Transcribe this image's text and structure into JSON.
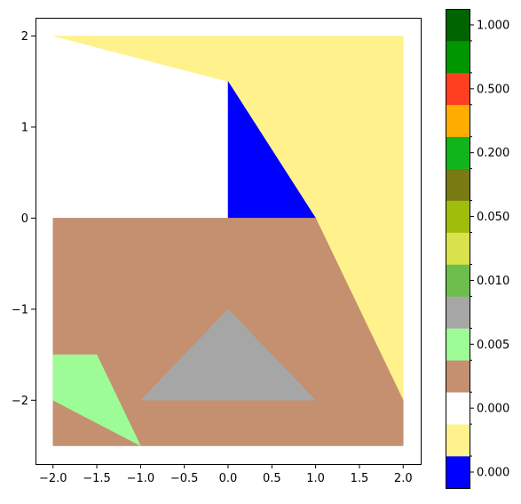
{
  "chart_data": {
    "type": "filled-region-plot",
    "title": "",
    "xlabel": "",
    "ylabel": "",
    "xlim": [
      -2.2,
      2.2
    ],
    "ylim": [
      -2.7,
      2.2
    ],
    "grid": false,
    "x_ticks": [
      -2.0,
      -1.5,
      -1.0,
      -0.5,
      0.0,
      0.5,
      1.0,
      1.5,
      2.0
    ],
    "x_tick_labels": [
      "−2.0",
      "−1.5",
      "−1.0",
      "−0.5",
      "0.0",
      "0.5",
      "1.0",
      "1.5",
      "2.0"
    ],
    "y_ticks": [
      2,
      1,
      0,
      -1,
      -2
    ],
    "y_tick_labels": [
      "2",
      "1",
      "0",
      "−1",
      "−2"
    ],
    "regions": [
      {
        "color": "#fff28c",
        "points": [
          [
            -2,
            2
          ],
          [
            2,
            2
          ],
          [
            2,
            -2
          ],
          [
            1,
            0
          ],
          [
            0,
            1.5
          ]
        ]
      },
      {
        "color": "#0000ff",
        "points": [
          [
            0,
            1.5
          ],
          [
            1,
            0
          ],
          [
            0,
            0
          ]
        ]
      },
      {
        "color": "#c49070",
        "points": [
          [
            -2,
            0
          ],
          [
            1,
            0
          ],
          [
            2,
            -2
          ],
          [
            2,
            -2.5
          ],
          [
            -2,
            -2.5
          ]
        ]
      },
      {
        "color": "#9dfc96",
        "points": [
          [
            -2,
            -1.5
          ],
          [
            -1.5,
            -1.5
          ],
          [
            -1,
            -2.5
          ],
          [
            -2,
            -2
          ]
        ]
      },
      {
        "color": "#a6a6a6",
        "points": [
          [
            -1,
            -2
          ],
          [
            0,
            -1
          ],
          [
            1,
            -2
          ]
        ]
      }
    ],
    "colorbar": {
      "colors": [
        "#0000ff",
        "#fff28c",
        "#ffffff",
        "#c49070",
        "#9dfc96",
        "#a6a6a6",
        "#6cbf4c",
        "#d9e34c",
        "#a0bd0c",
        "#7a7a12",
        "#10b41b",
        "#ffad00",
        "#ff3f20",
        "#009600",
        "#006400"
      ],
      "labels": [
        "0.000",
        "0.000",
        "0.005",
        "0.010",
        "0.050",
        "0.200",
        "0.500",
        "1.000"
      ],
      "label_positions": [
        0,
        2,
        4,
        6,
        8,
        10,
        12,
        14
      ]
    }
  }
}
